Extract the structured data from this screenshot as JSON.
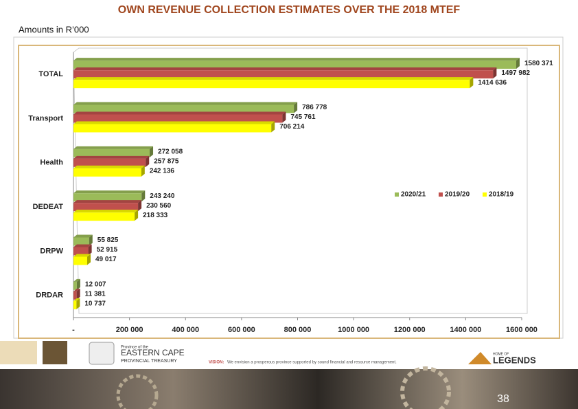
{
  "chart_data": {
    "type": "bar",
    "orientation": "horizontal",
    "title": "OWN REVENUE COLLECTION ESTIMATES OVER THE 2018 MTEF",
    "subtitle": "Amounts in R’000",
    "categories": [
      "TOTAL",
      "Transport",
      "Health",
      "DEDEAT",
      "DRPW",
      "DRDAR"
    ],
    "series": [
      {
        "name": "2020/21",
        "color": "#9bbb59",
        "values": [
          1580371,
          786778,
          272058,
          243240,
          55825,
          12007
        ],
        "value_labels": [
          "1580 371",
          "786 778",
          "272 058",
          "243 240",
          "55 825",
          "12 007"
        ]
      },
      {
        "name": "2019/20",
        "color": "#c0504d",
        "values": [
          1497982,
          745761,
          257875,
          230560,
          52915,
          11381
        ],
        "value_labels": [
          "1497 982",
          "745 761",
          "257 875",
          "230 560",
          "52 915",
          "11 381"
        ]
      },
      {
        "name": "2018/19",
        "color": "#ffff00",
        "values": [
          1414636,
          706214,
          242136,
          218333,
          49017,
          10737
        ],
        "value_labels": [
          "1414 636",
          "706 214",
          "242 136",
          "218 333",
          "49 017",
          "10 737"
        ]
      }
    ],
    "xlim": [
      0,
      1600000
    ],
    "xticks": [
      {
        "value": 0,
        "label": "-"
      },
      {
        "value": 200000,
        "label": "200 000"
      },
      {
        "value": 400000,
        "label": "400 000"
      },
      {
        "value": 600000,
        "label": "600 000"
      },
      {
        "value": 800000,
        "label": "800 000"
      },
      {
        "value": 1000000,
        "label": "1000 000"
      },
      {
        "value": 1200000,
        "label": "1200 000"
      },
      {
        "value": 1400000,
        "label": "1400 000"
      },
      {
        "value": 1600000,
        "label": "1600 000"
      }
    ],
    "legend": "right",
    "grid": false
  },
  "footer": {
    "province_line": "Province of the",
    "province": "EASTERN CAPE",
    "department": "PROVINCIAL TREASURY",
    "vision_label": "VISION:",
    "vision": "We envision a prosperous province supported by sound financial and resource management.",
    "brand_small": "HOME OF",
    "brand": "LEGENDS",
    "page_number": 38
  }
}
